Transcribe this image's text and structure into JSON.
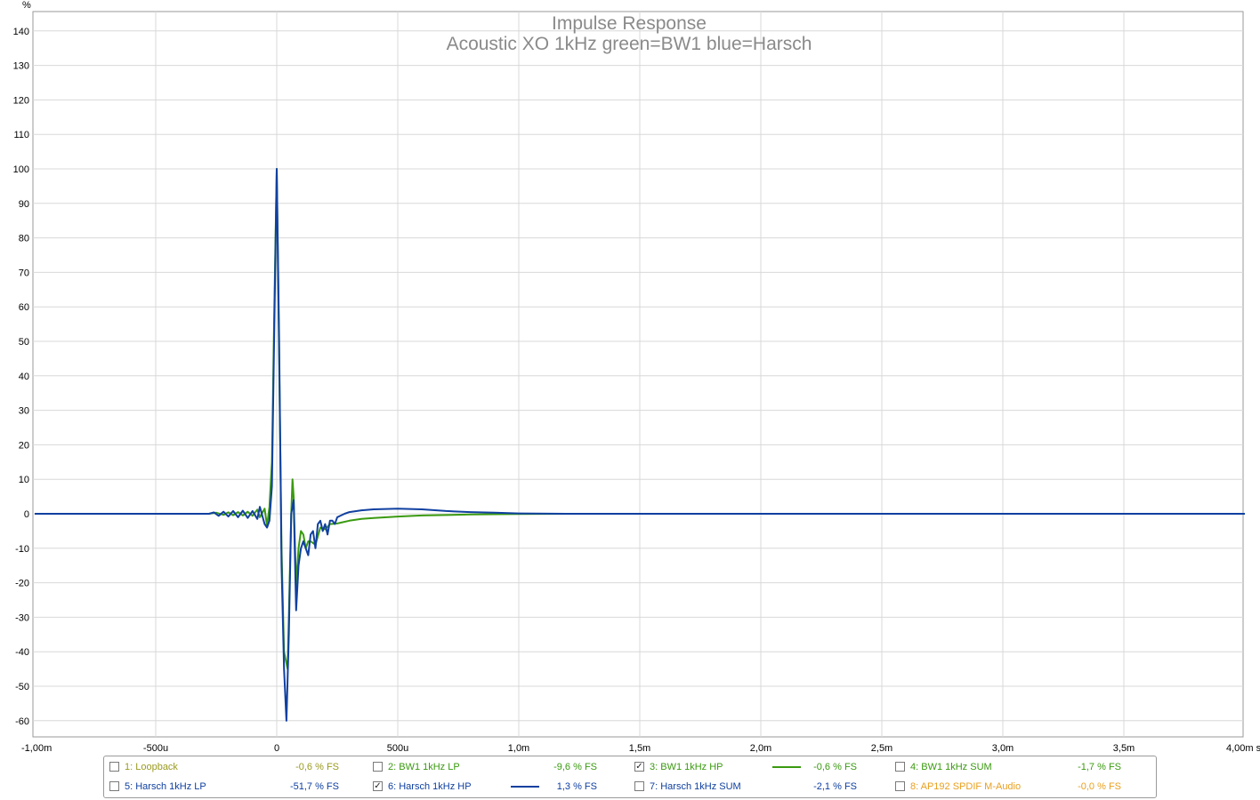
{
  "chart_data": {
    "type": "line",
    "title": "Impulse Response",
    "subtitle": "Acoustic XO 1kHz green=BW1 blue=Harsch",
    "ylabel": "%",
    "xlabel": "s",
    "xlim": [
      -0.001,
      0.004
    ],
    "ylim": [
      -65,
      145
    ],
    "yticks": [
      "140",
      "130",
      "120",
      "110",
      "100",
      "90",
      "80",
      "70",
      "60",
      "50",
      "40",
      "30",
      "20",
      "10",
      "0",
      "-10",
      "-20",
      "-30",
      "-40",
      "-50",
      "-60"
    ],
    "xticks": [
      "-1,00m",
      "-500u",
      "0",
      "500u",
      "1,0m",
      "1,5m",
      "2,0m",
      "2,5m",
      "3,0m",
      "3,5m",
      "4,00m s"
    ],
    "grid": true,
    "series": [
      {
        "name": "3: BW1 1kHz HP",
        "color": "#3a9a10",
        "x": [
          -0.001,
          -0.0005,
          -0.00028,
          -0.00025,
          -0.00022,
          -0.0002,
          -0.00018,
          -0.00016,
          -0.00014,
          -0.00012,
          -0.0001,
          -8e-05,
          -7e-05,
          -5e-05,
          -4e-05,
          -3e-05,
          -2e-05,
          -1e-05,
          0,
          1e-05,
          2e-05,
          3e-05,
          4.5e-05,
          6e-05,
          6.5e-05,
          7e-05,
          8e-05,
          9e-05,
          0.0001,
          0.00011,
          0.00012,
          0.00013,
          0.00014,
          0.00016,
          0.00018,
          0.0002,
          0.00022,
          0.00025,
          0.0003,
          0.00035,
          0.0004,
          0.0005,
          0.0006,
          0.0008,
          0.001,
          0.0012,
          0.0015,
          0.002,
          0.003,
          0.004
        ],
        "y": [
          0,
          0,
          0,
          0.3,
          -0.3,
          0.4,
          -0.4,
          0.5,
          -0.5,
          0.6,
          -0.6,
          1.2,
          -1,
          1.5,
          -3.5,
          2,
          15,
          60,
          100,
          45,
          -10,
          -40,
          -45,
          0,
          10,
          5,
          -21,
          -10,
          -5,
          -6,
          -10,
          -8,
          -8,
          -9,
          -4,
          -4.5,
          -3,
          -2.8,
          -2,
          -1.5,
          -1.2,
          -0.8,
          -0.5,
          -0.2,
          -0.05,
          0,
          0,
          0,
          0,
          0
        ]
      },
      {
        "name": "6: Harsch 1kHz HP",
        "color": "#1040a0",
        "x": [
          -0.001,
          -0.0005,
          -0.00028,
          -0.00026,
          -0.00024,
          -0.00022,
          -0.0002,
          -0.00018,
          -0.00016,
          -0.00014,
          -0.00012,
          -0.0001,
          -8e-05,
          -7e-05,
          -5e-05,
          -4e-05,
          -3e-05,
          -2e-05,
          -1e-05,
          0,
          1e-05,
          2e-05,
          3e-05,
          4e-05,
          5e-05,
          6e-05,
          7e-05,
          8e-05,
          9e-05,
          0.0001,
          0.00011,
          0.00012,
          0.00013,
          0.00014,
          0.00015,
          0.00016,
          0.00017,
          0.00018,
          0.00019,
          0.0002,
          0.00021,
          0.00022,
          0.00023,
          0.00024,
          0.00025,
          0.00028,
          0.0003,
          0.00035,
          0.0004,
          0.0005,
          0.0006,
          0.0007,
          0.0008,
          0.0009,
          0.001,
          0.0012,
          0.0015,
          0.002,
          0.003,
          0.004
        ],
        "y": [
          0,
          0,
          0,
          0.4,
          -0.6,
          0.6,
          -0.8,
          0.8,
          -1,
          0.9,
          -1.2,
          0.8,
          -1.5,
          2,
          -3,
          -4,
          -2,
          8,
          55,
          100,
          50,
          -15,
          -45,
          -60,
          -35,
          0,
          4,
          -28,
          -15,
          -10,
          -8,
          -10,
          -12,
          -6,
          -5,
          -10,
          -3,
          -2,
          -5,
          -3,
          -6,
          -2,
          -2,
          -3,
          -1,
          0,
          0.5,
          1,
          1.3,
          1.5,
          1.3,
          0.8,
          0.5,
          0.3,
          0.1,
          0,
          0,
          0,
          0,
          0
        ]
      }
    ]
  },
  "legend": {
    "items": [
      {
        "label": "1: Loopback",
        "value": "-0,6 % FS",
        "color": "#9a9a20",
        "checked": false,
        "swatch": false
      },
      {
        "label": "2: BW1 1kHz LP",
        "value": "-9,6 % FS",
        "color": "#3a9a10",
        "checked": false,
        "swatch": false
      },
      {
        "label": "3: BW1 1kHz HP",
        "value": "-0,6 % FS",
        "color": "#3a9a10",
        "checked": true,
        "swatch": true
      },
      {
        "label": "4: BW1 1kHz SUM",
        "value": "-1,7 % FS",
        "color": "#3a9a10",
        "checked": false,
        "swatch": false
      },
      {
        "label": "5: Harsch 1kHz LP",
        "value": "-51,7 % FS",
        "color": "#1040a0",
        "checked": false,
        "swatch": false
      },
      {
        "label": "6: Harsch 1kHz HP",
        "value": "1,3 % FS",
        "color": "#1040a0",
        "checked": true,
        "swatch": true
      },
      {
        "label": "7: Harsch 1kHz SUM",
        "value": "-2,1 % FS",
        "color": "#1040a0",
        "checked": false,
        "swatch": false
      },
      {
        "label": "8: AP192 SPDIF M-Audio",
        "value": "-0,0 % FS",
        "color": "#e8a020",
        "checked": false,
        "swatch": false
      }
    ]
  }
}
